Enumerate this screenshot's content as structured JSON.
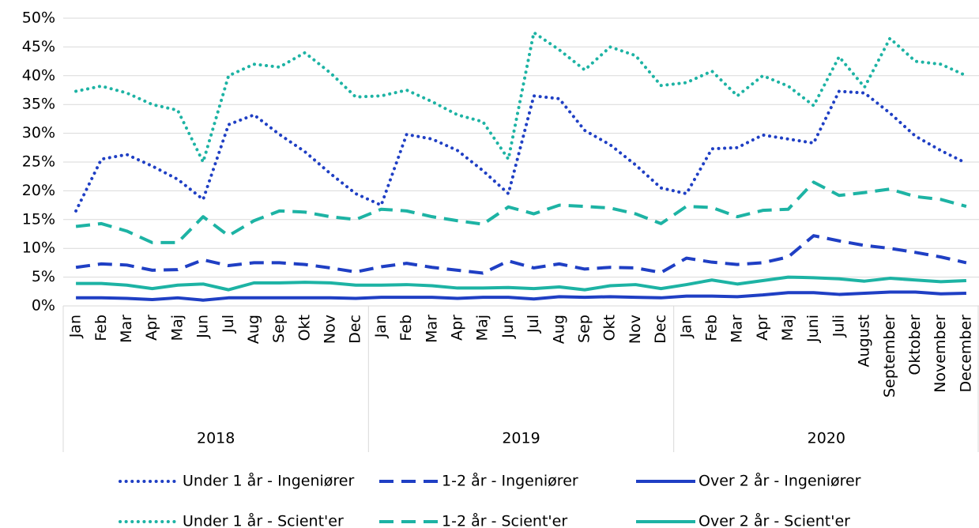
{
  "chart_data": {
    "type": "line",
    "categories": [
      "Jan",
      "Feb",
      "Mar",
      "Apr",
      "Maj",
      "Jun",
      "Jul",
      "Aug",
      "Sep",
      "Okt",
      "Nov",
      "Dec",
      "Jan",
      "Feb",
      "Mar",
      "Apr",
      "Maj",
      "Jun",
      "Jul",
      "Aug",
      "Sep",
      "Okt",
      "Nov",
      "Dec",
      "Jan",
      "Feb",
      "Mar",
      "Apr",
      "Maj",
      "Juni",
      "Juli",
      "August",
      "September",
      "Oktober",
      "November",
      "December"
    ],
    "years": [
      "2018",
      "2019",
      "2020"
    ],
    "ylim": [
      0,
      50
    ],
    "yticks": [
      {
        "value": 0,
        "label": "0%"
      },
      {
        "value": 5,
        "label": "5%"
      },
      {
        "value": 10,
        "label": "10%"
      },
      {
        "value": 15,
        "label": "15%"
      },
      {
        "value": 20,
        "label": "20%"
      },
      {
        "value": 25,
        "label": "25%"
      },
      {
        "value": 30,
        "label": "30%"
      },
      {
        "value": 35,
        "label": "35%"
      },
      {
        "value": 40,
        "label": "40%"
      },
      {
        "value": 45,
        "label": "45%"
      },
      {
        "value": 50,
        "label": "50%"
      }
    ],
    "grid": true,
    "series": [
      {
        "name": "Under 1 år - Ingeniører",
        "color": "#1f3fc4",
        "dash": "dotted",
        "values": [
          16.5,
          25.5,
          26.3,
          24.3,
          22,
          18.5,
          31.5,
          33.2,
          29.8,
          26.8,
          23,
          19.5,
          17.5,
          29.8,
          29,
          27,
          23.5,
          19.5,
          36.5,
          36,
          30.5,
          28,
          24.5,
          20.5,
          19.5,
          27.3,
          27.5,
          29.7,
          29,
          28.3,
          37.3,
          37,
          33.5,
          29.5,
          27,
          24.8
        ]
      },
      {
        "name": "1-2 år - Ingeniører",
        "color": "#1f3fc4",
        "dash": "dashed",
        "values": [
          6.7,
          7.3,
          7.1,
          6.2,
          6.3,
          8,
          7,
          7.5,
          7.5,
          7.2,
          6.6,
          5.9,
          6.8,
          7.4,
          6.7,
          6.2,
          5.7,
          7.8,
          6.6,
          7.3,
          6.4,
          6.7,
          6.6,
          5.8,
          8.3,
          7.6,
          7.2,
          7.5,
          8.5,
          12.2,
          11.3,
          10.5,
          10,
          9.3,
          8.5,
          7.5
        ]
      },
      {
        "name": "Over 2 år - Ingeniører",
        "color": "#1f3fc4",
        "dash": "solid",
        "values": [
          1.4,
          1.4,
          1.3,
          1.1,
          1.4,
          1.0,
          1.4,
          1.4,
          1.4,
          1.4,
          1.4,
          1.3,
          1.5,
          1.5,
          1.5,
          1.3,
          1.5,
          1.5,
          1.2,
          1.6,
          1.5,
          1.6,
          1.5,
          1.4,
          1.7,
          1.7,
          1.6,
          1.9,
          2.3,
          2.3,
          2.0,
          2.2,
          2.4,
          2.4,
          2.1,
          2.2
        ]
      },
      {
        "name": "Under 1 år - Scient'er",
        "color": "#1db3a4",
        "dash": "dotted",
        "values": [
          37.3,
          38.2,
          37,
          35,
          34,
          25,
          40,
          42,
          41.5,
          44,
          40.5,
          36.3,
          36.5,
          37.5,
          35.5,
          33.2,
          32,
          25.5,
          47.5,
          44.5,
          41,
          45,
          43.5,
          38.3,
          38.8,
          40.8,
          36.5,
          40,
          38.2,
          34.8,
          43.3,
          38,
          46.5,
          42.5,
          42,
          40
        ]
      },
      {
        "name": "1-2 år - Scient'er",
        "color": "#1db3a4",
        "dash": "dashed",
        "values": [
          13.8,
          14.3,
          13,
          11,
          11,
          15.5,
          12.2,
          14.8,
          16.5,
          16.3,
          15.5,
          15,
          16.8,
          16.5,
          15.5,
          14.8,
          14.2,
          17.2,
          16,
          17.5,
          17.3,
          17,
          16,
          14.3,
          17.3,
          17.1,
          15.5,
          16.6,
          16.8,
          21.5,
          19.2,
          19.7,
          20.3,
          19,
          18.5,
          17.3
        ]
      },
      {
        "name": "Over 2 år - Scient'er",
        "color": "#1db3a4",
        "dash": "solid",
        "values": [
          3.9,
          3.9,
          3.6,
          3.0,
          3.6,
          3.8,
          2.8,
          4.0,
          4.0,
          4.1,
          4.0,
          3.6,
          3.6,
          3.7,
          3.5,
          3.1,
          3.1,
          3.2,
          3.0,
          3.3,
          2.8,
          3.5,
          3.7,
          3.0,
          3.7,
          4.5,
          3.8,
          4.4,
          5.0,
          4.9,
          4.7,
          4.3,
          4.8,
          4.5,
          4.2,
          4.4
        ]
      }
    ]
  }
}
